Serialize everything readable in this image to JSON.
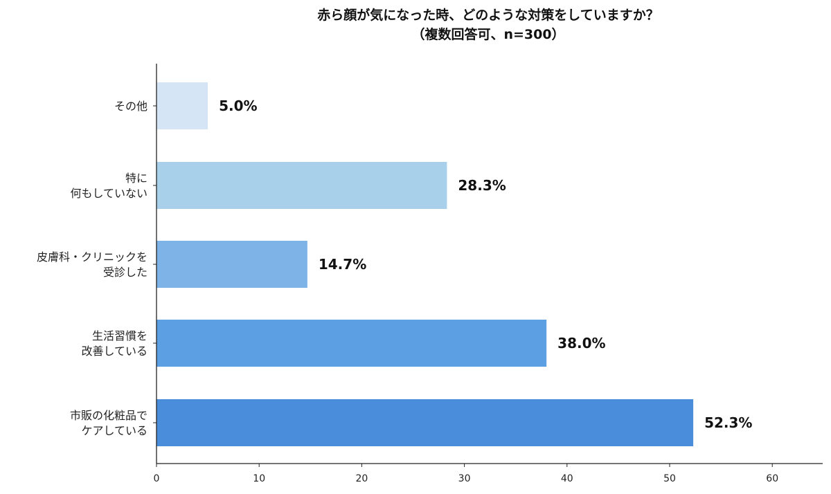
{
  "chart_data": {
    "type": "bar",
    "orientation": "horizontal",
    "title": "赤ら顔が気になった時、どのような対策をしていますか？",
    "subtitle": "（複数回答可、n=300）",
    "categories": [
      "その他",
      "特に\n何もしていない",
      "皮膚科・クリニックを\n受診した",
      "生活習慣を\n改善している",
      "市販の化粧品で\nケアしている"
    ],
    "values": [
      5.0,
      28.3,
      14.7,
      38.0,
      52.3
    ],
    "data_labels": [
      "5.0%",
      "28.3%",
      "14.7%",
      "38.0%",
      "52.3%"
    ],
    "colors": [
      "#d5e5f5",
      "#a9d0ea",
      "#7db3e6",
      "#5c9fe2",
      "#4a8ddb"
    ],
    "xlim": [
      0,
      65
    ],
    "xticks": [
      0,
      10,
      20,
      30,
      40,
      50,
      60
    ],
    "xlabel": "",
    "ylabel": "",
    "grid": false,
    "legend": "none"
  }
}
